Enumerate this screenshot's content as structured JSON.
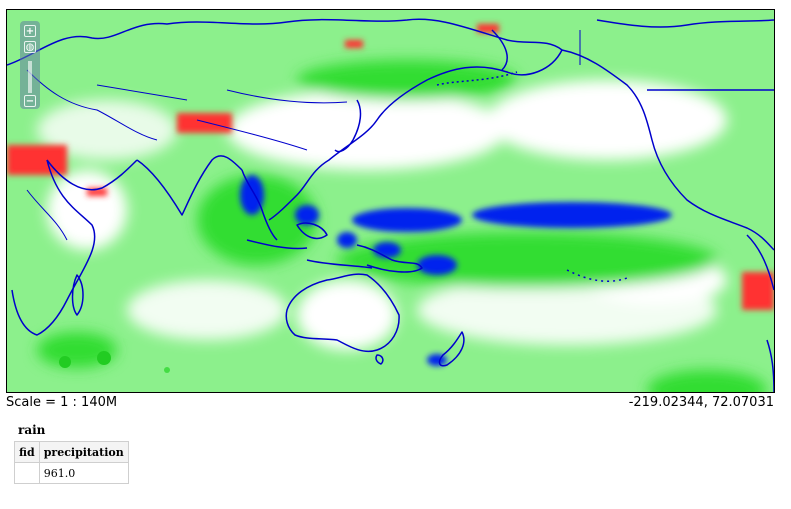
{
  "map": {
    "colors": {
      "background": "#ffffff",
      "low": "#e8fbe8",
      "mid": "#33dd33",
      "high": "#0022ee",
      "anomaly": "#ff3333",
      "coastline": "#0000cc"
    },
    "zoom_controls": {
      "zoom_in": "+",
      "zoom_out": "−"
    }
  },
  "status": {
    "scale": "Scale = 1 : 140M",
    "coordinates": "-219.02344, 72.07031"
  },
  "layer": {
    "title": "rain",
    "table": {
      "headers": [
        "fid",
        "precipitation"
      ],
      "rows": [
        [
          "",
          "961.0"
        ]
      ]
    }
  }
}
